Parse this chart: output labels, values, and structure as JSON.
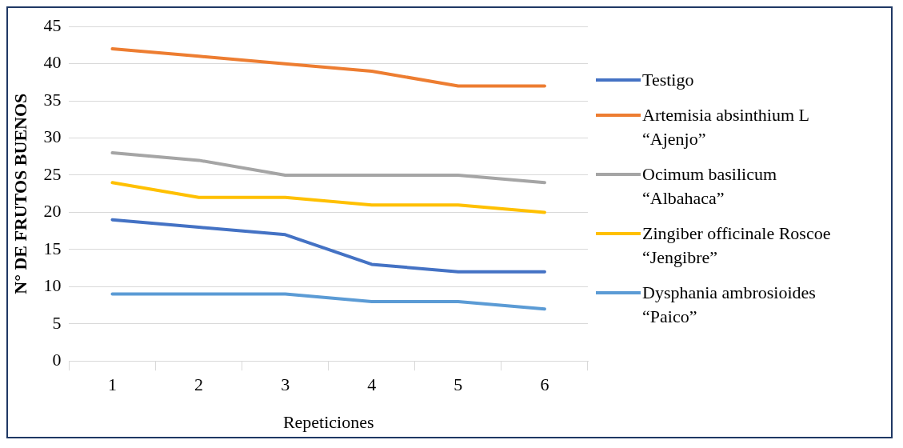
{
  "chart_data": {
    "type": "line",
    "xlabel": "Repeticiones",
    "ylabel": "N° DE FRUTOS BUENOS",
    "categories": [
      "1",
      "2",
      "3",
      "4",
      "5",
      "6"
    ],
    "series": [
      {
        "name": "Testigo",
        "color": "#4472c4",
        "values": [
          19,
          18,
          17,
          13,
          12,
          12
        ]
      },
      {
        "name": "Artemisia absinthium L “Ajenjo”",
        "color": "#ed7d31",
        "values": [
          42,
          41,
          40,
          39,
          37,
          37
        ]
      },
      {
        "name": "Ocimum basilicum “Albahaca”",
        "color": "#a5a5a5",
        "values": [
          28,
          27,
          25,
          25,
          25,
          24
        ]
      },
      {
        "name": "Zingiber officinale Roscoe “Jengibre”",
        "color": "#ffc000",
        "values": [
          24,
          22,
          22,
          21,
          21,
          20
        ]
      },
      {
        "name": "Dysphania ambrosioides “Paico”",
        "color": "#5b9bd5",
        "values": [
          9,
          9,
          9,
          8,
          8,
          7
        ]
      }
    ],
    "ylim": [
      0,
      45
    ],
    "yticks": [
      0,
      5,
      10,
      15,
      20,
      25,
      30,
      35,
      40,
      45
    ],
    "grid": "y",
    "legend": "right",
    "marker": "none",
    "line_style": "solid"
  }
}
